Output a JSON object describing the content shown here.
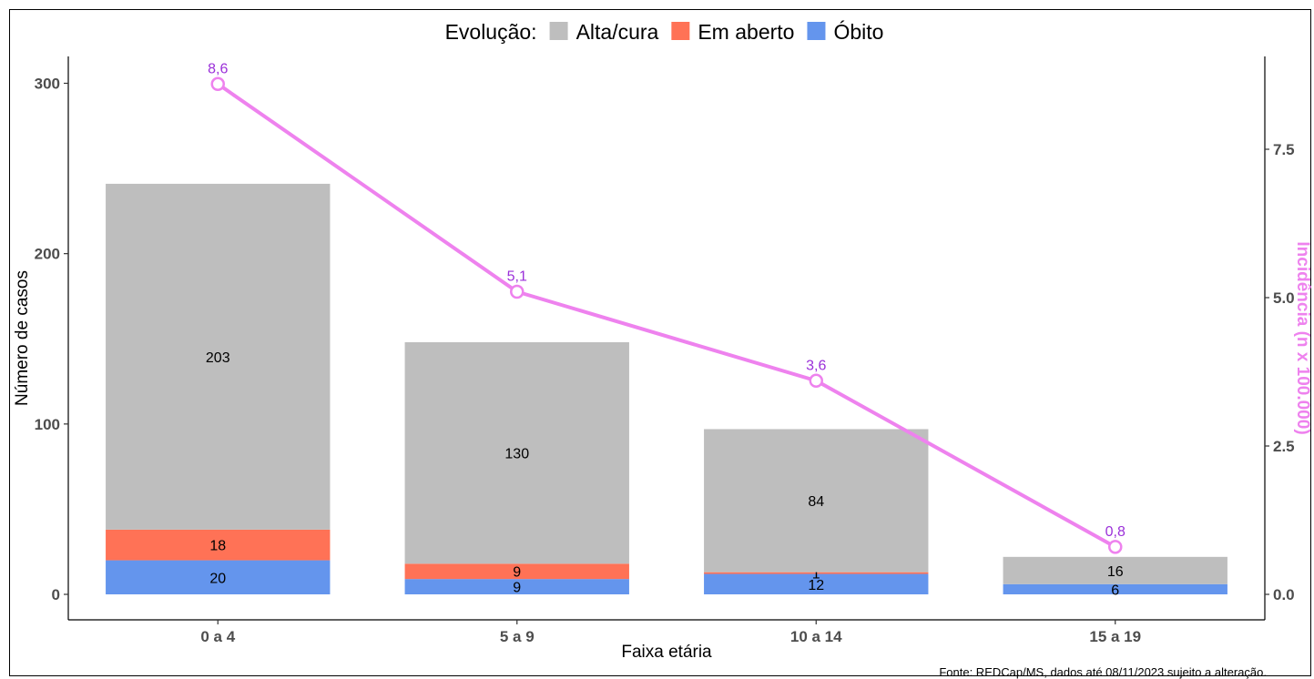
{
  "chart_data": {
    "type": "bar",
    "stacked": true,
    "secondary_axis_line": true,
    "categories": [
      "0 a 4",
      "5 a 9",
      "10 a 14",
      "15 a 19"
    ],
    "legend": {
      "title": "Evolução:",
      "placement": "top-center",
      "entries": [
        {
          "name": "Alta/cura",
          "color": "#BEBEBE"
        },
        {
          "name": "Em aberto",
          "color": "#FF7256"
        },
        {
          "name": "Óbito",
          "color": "#6495ED"
        }
      ]
    },
    "series": [
      {
        "name": "Óbito",
        "values": [
          20,
          9,
          12,
          6
        ],
        "color": "#6495ED"
      },
      {
        "name": "Em aberto",
        "values": [
          18,
          9,
          1,
          0
        ],
        "color": "#FF7256"
      },
      {
        "name": "Alta/cura",
        "values": [
          203,
          130,
          84,
          16
        ],
        "color": "#BEBEBE"
      }
    ],
    "bar_labels": [
      [
        "20",
        "18",
        "203"
      ],
      [
        "9",
        "9",
        "130"
      ],
      [
        "12",
        "1",
        "84"
      ],
      [
        "6",
        "",
        "16"
      ]
    ],
    "line": {
      "values": [
        8.6,
        5.1,
        3.6,
        0.8
      ],
      "labels": [
        "8,6",
        "5,1",
        "3,6",
        "0,8"
      ],
      "color": "#EE82EE",
      "label_color": "#9B30D9"
    },
    "xlabel": "Faixa etária",
    "ylabel": "Número de casos",
    "y2label": "Incidência (n x 100.000)",
    "ylim": [
      0,
      315
    ],
    "yticks": [
      0,
      100,
      200,
      300
    ],
    "ytick_labels": [
      "0",
      "100",
      "200",
      "300"
    ],
    "y2lim": [
      0,
      8.79
    ],
    "y2ticks": [
      0,
      2.5,
      5.0,
      7.5
    ],
    "y2tick_labels": [
      "0.0",
      "2.5",
      "5.0",
      "7.5"
    ],
    "grid": false
  },
  "source_note": "Fonte: REDCap/MS, dados até 08/11/2023 sujeito a alteração."
}
